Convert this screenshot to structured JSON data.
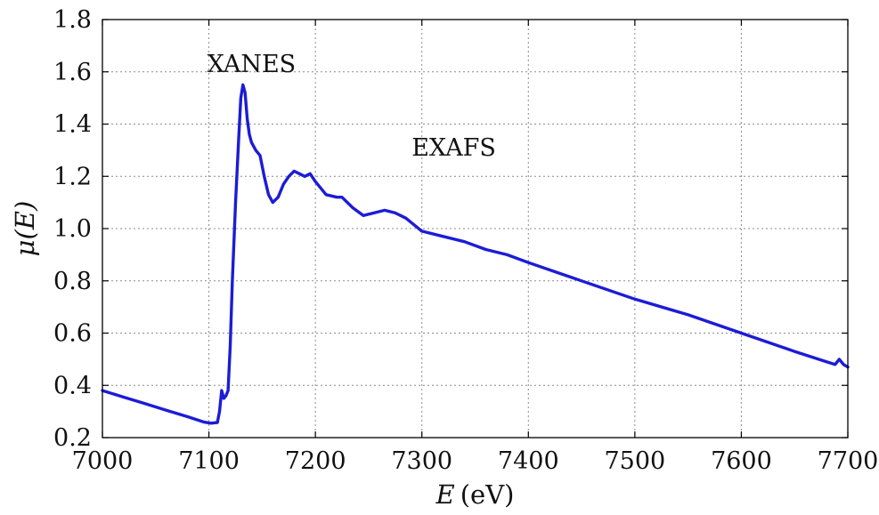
{
  "chart_data": {
    "type": "line",
    "title": "",
    "xlabel_math": "E",
    "xlabel_unit": "(eV)",
    "ylabel_math": "μ(E)",
    "xlim": [
      7000,
      7700
    ],
    "ylim": [
      0.2,
      1.8
    ],
    "grid": true,
    "x_ticks": [
      "7000",
      "7100",
      "7200",
      "7300",
      "7400",
      "7500",
      "7600",
      "7700"
    ],
    "y_ticks": [
      "0.2",
      "0.4",
      "0.6",
      "0.8",
      "1.0",
      "1.2",
      "1.4",
      "1.6",
      "1.8"
    ],
    "annotations": [
      {
        "text": "XANES",
        "x": 7140,
        "y": 1.6
      },
      {
        "text": "EXAFS",
        "x": 7330,
        "y": 1.28
      }
    ],
    "series": [
      {
        "color": "#1c1cd6",
        "x": [
          7000,
          7020,
          7040,
          7060,
          7080,
          7095,
          7102,
          7108,
          7110,
          7112,
          7114,
          7116,
          7118,
          7120,
          7122,
          7125,
          7128,
          7130,
          7132,
          7134,
          7136,
          7138,
          7140,
          7144,
          7148,
          7152,
          7156,
          7160,
          7165,
          7170,
          7175,
          7180,
          7185,
          7190,
          7195,
          7200,
          7210,
          7220,
          7225,
          7235,
          7245,
          7255,
          7265,
          7275,
          7285,
          7300,
          7320,
          7340,
          7360,
          7380,
          7400,
          7450,
          7500,
          7550,
          7600,
          7650,
          7680,
          7688,
          7692,
          7696,
          7700
        ],
        "y": [
          0.38,
          0.355,
          0.33,
          0.305,
          0.28,
          0.26,
          0.255,
          0.258,
          0.3,
          0.38,
          0.35,
          0.36,
          0.38,
          0.55,
          0.8,
          1.1,
          1.35,
          1.5,
          1.55,
          1.52,
          1.42,
          1.36,
          1.33,
          1.3,
          1.28,
          1.2,
          1.13,
          1.1,
          1.12,
          1.17,
          1.2,
          1.22,
          1.21,
          1.2,
          1.21,
          1.18,
          1.13,
          1.12,
          1.12,
          1.08,
          1.05,
          1.06,
          1.07,
          1.06,
          1.04,
          0.99,
          0.97,
          0.95,
          0.92,
          0.9,
          0.87,
          0.8,
          0.73,
          0.67,
          0.6,
          0.53,
          0.49,
          0.48,
          0.5,
          0.48,
          0.47
        ]
      }
    ]
  }
}
